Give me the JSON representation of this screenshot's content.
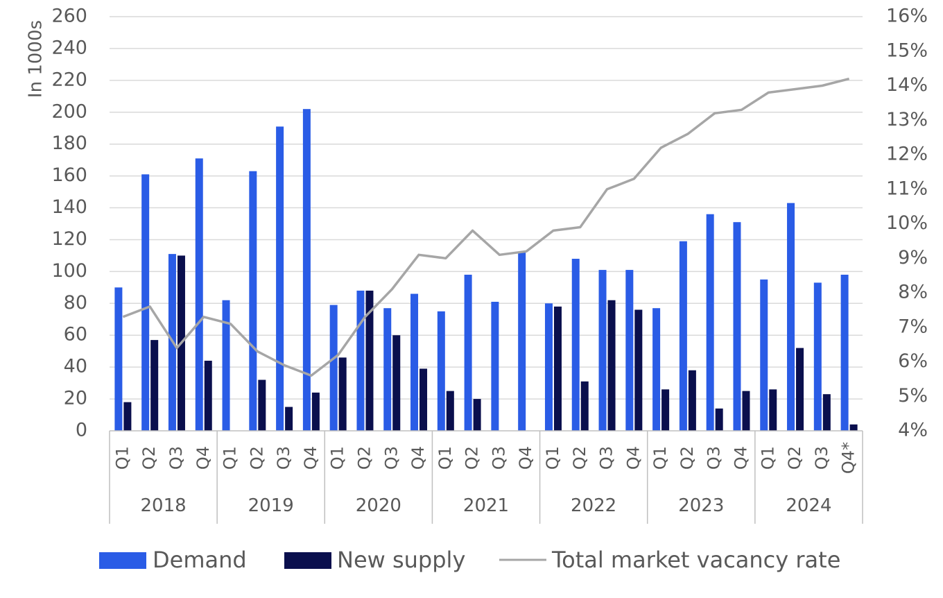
{
  "chart_data": {
    "type": "bar",
    "y_axis_label": "In 1000s",
    "ylim": [
      0,
      260
    ],
    "y_ticks": [
      0,
      20,
      40,
      60,
      80,
      100,
      120,
      140,
      160,
      180,
      200,
      220,
      240,
      260
    ],
    "y2lim": [
      4,
      16
    ],
    "y2_ticks": [
      "4%",
      "5%",
      "6%",
      "7%",
      "8%",
      "9%",
      "10%",
      "11%",
      "12%",
      "13%",
      "14%",
      "15%",
      "16%"
    ],
    "grid": true,
    "legend_position": "bottom",
    "years": [
      "2018",
      "2019",
      "2020",
      "2021",
      "2022",
      "2023",
      "2024"
    ],
    "quarters": [
      "Q1",
      "Q2",
      "Q3",
      "Q4",
      "Q1",
      "Q2",
      "Q3",
      "Q4",
      "Q1",
      "Q2",
      "Q3",
      "Q4",
      "Q1",
      "Q2",
      "Q3",
      "Q4",
      "Q1",
      "Q2",
      "Q3",
      "Q4",
      "Q1",
      "Q2",
      "Q3",
      "Q4",
      "Q1",
      "Q2",
      "Q3",
      "Q4*"
    ],
    "series": [
      {
        "name": "Demand",
        "type": "bar",
        "axis": "left",
        "color": "#2a5ce6",
        "values": [
          90,
          161,
          111,
          171,
          82,
          163,
          191,
          202,
          79,
          88,
          77,
          86,
          75,
          98,
          81,
          112,
          80,
          108,
          101,
          101,
          77,
          119,
          136,
          131,
          95,
          143,
          93,
          98
        ]
      },
      {
        "name": "New supply",
        "type": "bar",
        "axis": "left",
        "color": "#0a0f4d",
        "values": [
          18,
          57,
          110,
          44,
          0,
          32,
          15,
          24,
          46,
          88,
          60,
          39,
          25,
          20,
          0,
          0,
          78,
          31,
          82,
          76,
          26,
          38,
          14,
          25,
          26,
          52,
          23,
          4
        ]
      },
      {
        "name": "Total market vacancy rate",
        "type": "line",
        "axis": "right",
        "color": "#a6a6a6",
        "values": [
          7.3,
          7.6,
          6.4,
          7.3,
          7.1,
          6.3,
          5.9,
          5.6,
          6.2,
          7.3,
          8.1,
          9.1,
          9.0,
          9.8,
          9.1,
          9.2,
          9.8,
          9.9,
          11.0,
          11.3,
          12.2,
          12.6,
          13.2,
          13.3,
          13.8,
          13.9,
          14.0,
          14.2
        ]
      }
    ]
  }
}
